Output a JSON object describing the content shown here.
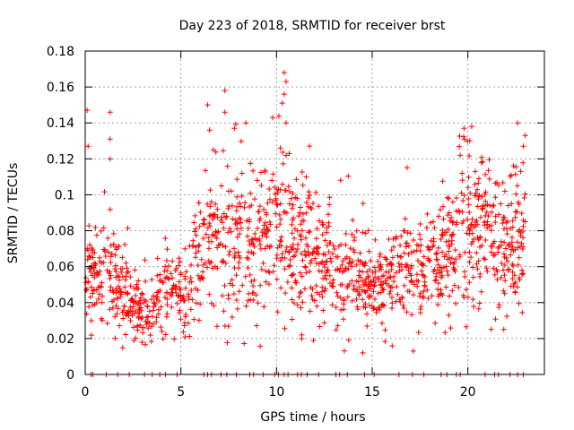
{
  "chart_data": {
    "type": "scatter",
    "title": "Day 223 of 2018, SRMTID for receiver brst",
    "xlabel": "GPS time / hours",
    "ylabel": "SRMTID / TECUs",
    "xlim": [
      0,
      24
    ],
    "ylim": [
      0,
      0.18
    ],
    "xticks": [
      0,
      5,
      10,
      15,
      20
    ],
    "xtick_labels": [
      "0",
      "5",
      "10",
      "15",
      "20"
    ],
    "yticks": [
      0,
      0.02,
      0.04,
      0.06,
      0.08,
      0.1,
      0.12,
      0.14,
      0.16,
      0.18
    ],
    "ytick_labels": [
      "0",
      "0.02",
      "0.04",
      "0.06",
      "0.08",
      "0.1",
      "0.12",
      "0.14",
      "0.16",
      "0.18"
    ],
    "grid": true,
    "marker": "+",
    "color": "#ff0000",
    "series": [
      {
        "name": "SRMTID",
        "profile": [
          [
            0.0,
            0.05,
            0.015
          ],
          [
            0.5,
            0.055,
            0.015
          ],
          [
            1.0,
            0.06,
            0.018
          ],
          [
            1.5,
            0.058,
            0.015
          ],
          [
            2.0,
            0.045,
            0.012
          ],
          [
            2.5,
            0.035,
            0.01
          ],
          [
            3.0,
            0.035,
            0.01
          ],
          [
            3.5,
            0.037,
            0.01
          ],
          [
            4.0,
            0.04,
            0.01
          ],
          [
            4.5,
            0.045,
            0.012
          ],
          [
            5.0,
            0.042,
            0.012
          ],
          [
            5.5,
            0.045,
            0.015
          ],
          [
            6.0,
            0.075,
            0.02
          ],
          [
            6.5,
            0.075,
            0.025
          ],
          [
            7.0,
            0.07,
            0.02
          ],
          [
            7.5,
            0.07,
            0.022
          ],
          [
            8.0,
            0.068,
            0.02
          ],
          [
            8.5,
            0.068,
            0.02
          ],
          [
            9.0,
            0.07,
            0.02
          ],
          [
            9.5,
            0.072,
            0.02
          ],
          [
            10.0,
            0.075,
            0.022
          ],
          [
            10.5,
            0.078,
            0.025
          ],
          [
            11.0,
            0.072,
            0.02
          ],
          [
            11.5,
            0.07,
            0.02
          ],
          [
            12.0,
            0.065,
            0.018
          ],
          [
            12.5,
            0.062,
            0.018
          ],
          [
            13.0,
            0.06,
            0.017
          ],
          [
            13.5,
            0.055,
            0.015
          ],
          [
            14.0,
            0.055,
            0.012
          ],
          [
            14.5,
            0.052,
            0.012
          ],
          [
            15.0,
            0.05,
            0.01
          ],
          [
            15.5,
            0.05,
            0.012
          ],
          [
            16.0,
            0.055,
            0.012
          ],
          [
            16.5,
            0.058,
            0.015
          ],
          [
            17.0,
            0.058,
            0.015
          ],
          [
            17.5,
            0.06,
            0.015
          ],
          [
            18.0,
            0.06,
            0.015
          ],
          [
            18.5,
            0.062,
            0.017
          ],
          [
            19.0,
            0.065,
            0.018
          ],
          [
            19.5,
            0.075,
            0.02
          ],
          [
            20.0,
            0.085,
            0.022
          ],
          [
            20.5,
            0.085,
            0.022
          ],
          [
            21.0,
            0.08,
            0.02
          ],
          [
            21.5,
            0.075,
            0.02
          ],
          [
            22.0,
            0.072,
            0.02
          ],
          [
            22.5,
            0.075,
            0.02
          ],
          [
            23.0,
            0.075,
            0.02
          ]
        ],
        "spikes": [
          [
            0.1,
            0.147
          ],
          [
            0.15,
            0.127
          ],
          [
            1.3,
            0.146
          ],
          [
            1.3,
            0.131
          ],
          [
            1.3,
            0.12
          ],
          [
            6.4,
            0.15
          ],
          [
            6.5,
            0.136
          ],
          [
            7.3,
            0.158
          ],
          [
            7.3,
            0.146
          ],
          [
            8.4,
            0.14
          ],
          [
            9.8,
            0.143
          ],
          [
            10.4,
            0.168
          ],
          [
            10.5,
            0.163
          ],
          [
            10.4,
            0.156
          ],
          [
            10.3,
            0.151
          ],
          [
            10.5,
            0.14
          ],
          [
            10.2,
            0.126
          ],
          [
            19.8,
            0.137
          ],
          [
            20.2,
            0.138
          ],
          [
            20.1,
            0.13
          ],
          [
            22.6,
            0.14
          ],
          [
            23.0,
            0.133
          ],
          [
            22.9,
            0.127
          ],
          [
            19.6,
            0.122
          ],
          [
            6.7,
            0.125
          ]
        ],
        "zero_points": [
          0.3,
          0.4,
          1.1,
          1.7,
          2.3,
          3.1,
          3.5,
          3.9,
          4.2,
          4.8,
          6.2,
          6.4,
          6.6,
          7.1,
          7.4,
          7.9,
          8.6,
          8.8,
          9.3,
          9.9,
          10.1,
          10.4,
          10.6,
          11.1,
          11.3,
          11.6,
          12.2,
          13.1,
          13.3,
          13.7,
          14.6,
          15.1,
          16.4,
          17.1,
          17.7,
          18.6,
          18.9,
          19.4,
          19.6,
          20.9,
          21.4,
          21.6,
          22.2,
          22.6,
          22.9
        ]
      }
    ]
  }
}
